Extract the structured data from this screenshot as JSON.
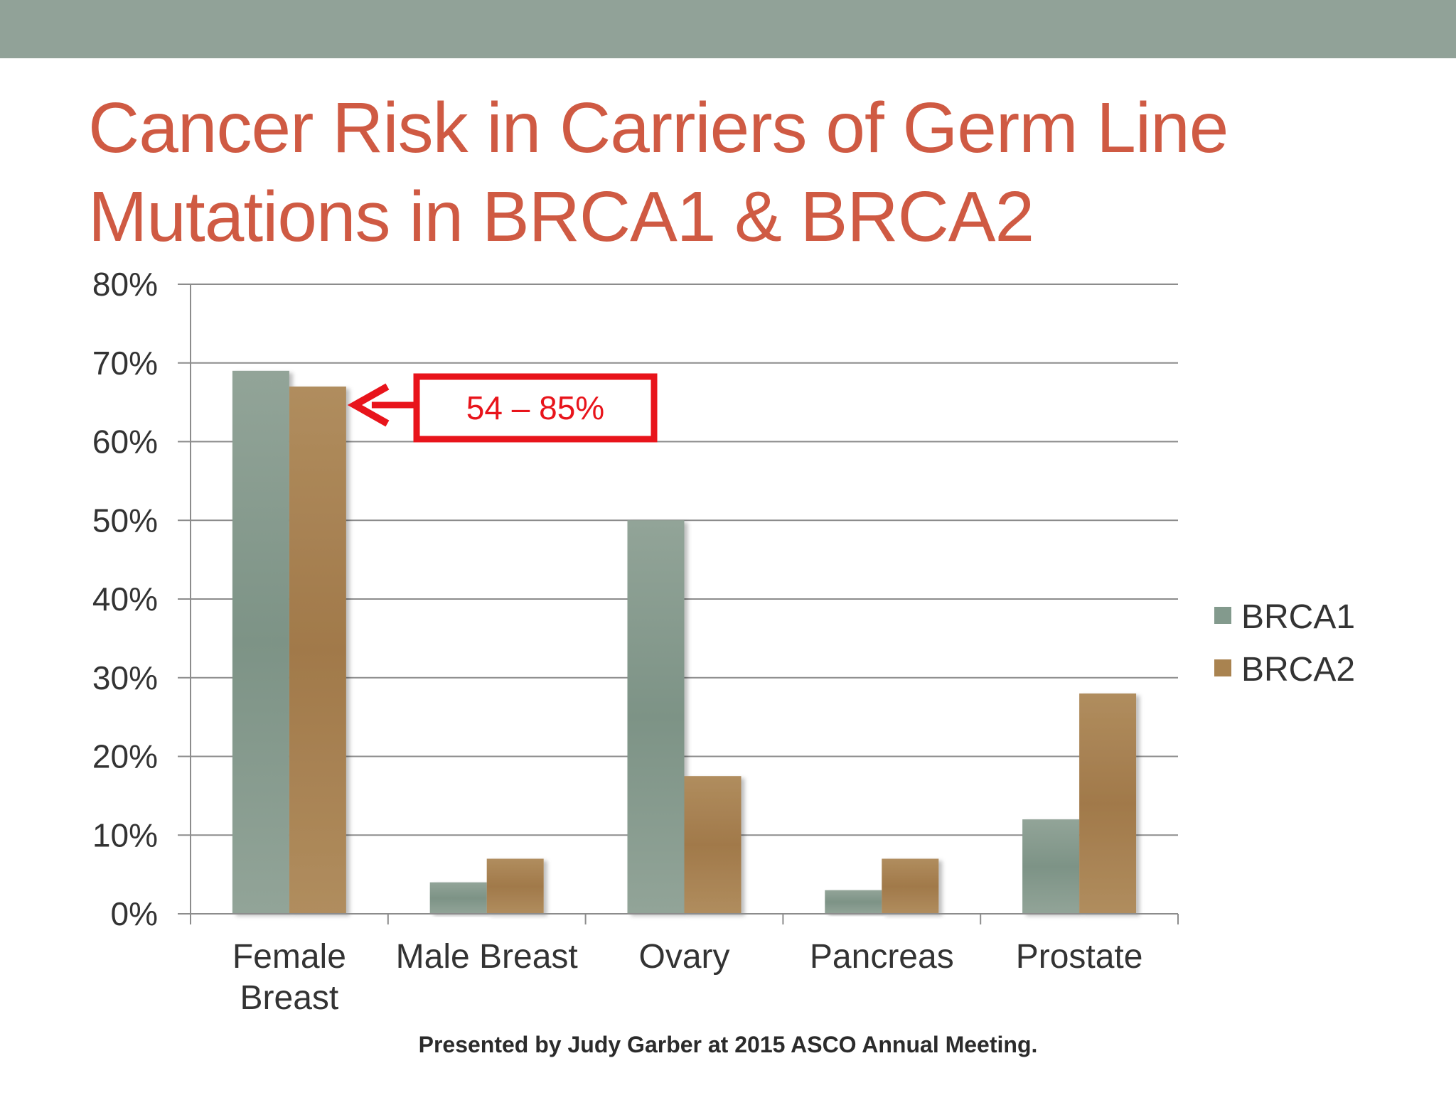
{
  "slide": {
    "title_line1": "Cancer Risk in Carriers of Germ Line",
    "title_line2": "Mutations in BRCA1 & BRCA2",
    "footer": "Presented by Judy Garber at 2015 ASCO Annual Meeting.",
    "band_color": "#91a298",
    "title_color": "#cf5a43"
  },
  "chart_data": {
    "type": "bar",
    "title": "",
    "xlabel": "",
    "ylabel": "",
    "categories": [
      [
        "Female",
        "Breast"
      ],
      [
        "Male Breast"
      ],
      [
        "Ovary"
      ],
      [
        "Pancreas"
      ],
      [
        "Prostate"
      ]
    ],
    "series": [
      {
        "name": "BRCA1",
        "color": "#839a8d",
        "values": [
          69,
          4,
          50,
          3,
          12
        ]
      },
      {
        "name": "BRCA2",
        "color": "#a98350",
        "values": [
          67,
          7,
          17.5,
          7,
          28
        ]
      }
    ],
    "ylim": [
      0,
      80
    ],
    "yticks": [
      "0%",
      "10%",
      "20%",
      "30%",
      "40%",
      "50%",
      "60%",
      "70%",
      "80%"
    ],
    "grid": true,
    "legend_position": "right",
    "annotation": {
      "text": "54 – 85%",
      "color": "#e8141b",
      "target_category": 0,
      "target_series": 1
    }
  }
}
